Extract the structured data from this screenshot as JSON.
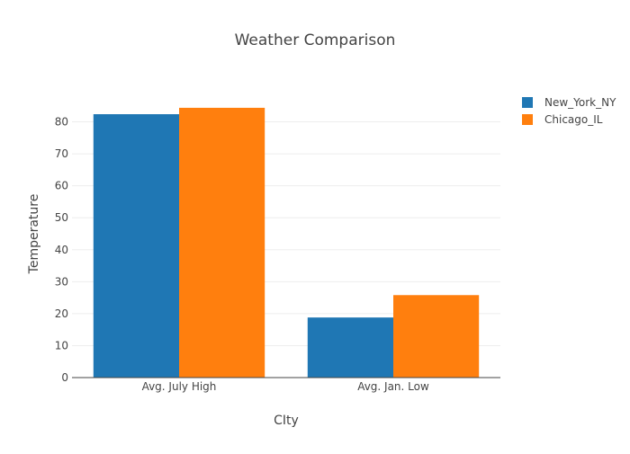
{
  "chart_data": {
    "type": "bar",
    "title": "Weather Comparison",
    "xlabel": "CIty",
    "ylabel": "Temperature",
    "categories": [
      "Avg. July High",
      "Avg. Jan. Low"
    ],
    "series": [
      {
        "name": "New_York_NY",
        "values": [
          82.4,
          18.8
        ],
        "color": "#1f77b4"
      },
      {
        "name": "Chicago_IL",
        "values": [
          84.4,
          25.8
        ],
        "color": "#ff7f0e"
      }
    ],
    "ylim": [
      0,
      90
    ],
    "yticks": [
      0,
      10,
      20,
      30,
      40,
      50,
      60,
      70,
      80
    ],
    "grid": true,
    "legend_position": "top-right"
  }
}
